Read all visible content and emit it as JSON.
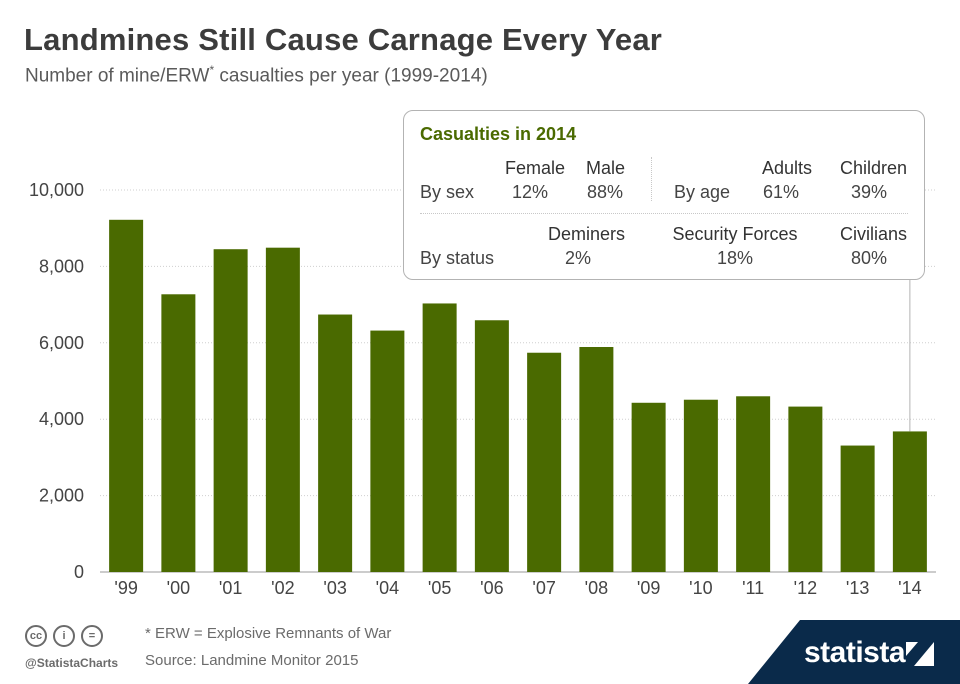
{
  "header": {
    "title": "Landmines Still Cause Carnage Every Year",
    "subtitle_main": "Number of mine/ERW",
    "subtitle_sup": "*",
    "subtitle_rest": " casualties per year (1999-2014)"
  },
  "chart_data": {
    "type": "bar",
    "categories": [
      "'99",
      "'00",
      "'01",
      "'02",
      "'03",
      "'04",
      "'05",
      "'06",
      "'07",
      "'08",
      "'09",
      "'10",
      "'11",
      "'12",
      "'13",
      "'14"
    ],
    "values": [
      9220,
      7270,
      8450,
      8490,
      6740,
      6320,
      7030,
      6590,
      5740,
      5890,
      4430,
      4510,
      4600,
      4330,
      3310,
      3680
    ],
    "ylim": [
      0,
      10000
    ],
    "yticks": [
      0,
      2000,
      4000,
      6000,
      8000,
      10000
    ],
    "ytick_labels": [
      "0",
      "2,000",
      "4,000",
      "6,000",
      "8,000",
      "10,000"
    ],
    "grid": "horizontal dotted",
    "bar_color": "#4a6a00",
    "title": "Landmines Still Cause Carnage Every Year",
    "xlabel": "",
    "ylabel": ""
  },
  "infobox": {
    "title": "Casualties in 2014",
    "by_sex_label": "By sex",
    "female_label": "Female",
    "female_value": "12%",
    "male_label": "Male",
    "male_value": "88%",
    "by_age_label": "By age",
    "adults_label": "Adults",
    "adults_value": "61%",
    "children_label": "Children",
    "children_value": "39%",
    "by_status_label": "By status",
    "deminers_label": "Deminers",
    "deminers_value": "2%",
    "security_label": "Security Forces",
    "security_value": "18%",
    "civilians_label": "Civilians",
    "civilians_value": "80%"
  },
  "footer": {
    "note": "* ERW = Explosive Remnants of War",
    "source": "Source: Landmine Monitor 2015",
    "handle": "@StatistaCharts",
    "brand": "statista",
    "icons": [
      "cc-icon",
      "by-icon",
      "nd-icon"
    ],
    "icon_glyphs": [
      "cc",
      "i",
      "="
    ]
  },
  "colors": {
    "accent": "#4a6a00",
    "brand_bar": "#0a2a4a"
  }
}
